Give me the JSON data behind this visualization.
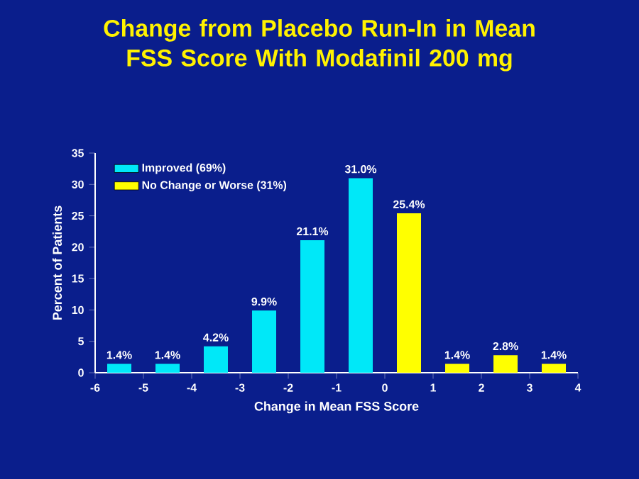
{
  "chart_data": {
    "type": "bar",
    "title": "Change from Placebo Run-In in Mean FSS Score With Modafinil 200 mg",
    "xlabel": "Change in Mean FSS Score",
    "ylabel": "Percent of Patients",
    "xlim": [
      -6,
      4
    ],
    "xticks": [
      -6,
      -5,
      -4,
      -3,
      -2,
      -1,
      0,
      1,
      2,
      3,
      4
    ],
    "ylim": [
      0,
      35
    ],
    "yticks": [
      0,
      5,
      10,
      15,
      20,
      25,
      30,
      35
    ],
    "legend": "top left",
    "series": [
      {
        "name": "Improved (69%)",
        "color": "#00e8f8",
        "x": [
          -5.5,
          -4.5,
          -3.5,
          -2.5,
          -1.5,
          -0.5
        ],
        "values": [
          1.4,
          1.4,
          4.2,
          9.9,
          21.1,
          31.0
        ],
        "value_labels": [
          "1.4%",
          "1.4%",
          "4.2%",
          "9.9%",
          "21.1%",
          "31.0%"
        ]
      },
      {
        "name": "No Change or Worse (31%)",
        "color": "#ffff00",
        "x": [
          0.5,
          1.5,
          2.5,
          3.5
        ],
        "values": [
          25.4,
          1.4,
          2.8,
          1.4
        ],
        "value_labels": [
          "25.4%",
          "1.4%",
          "2.8%",
          "1.4%"
        ]
      }
    ]
  }
}
